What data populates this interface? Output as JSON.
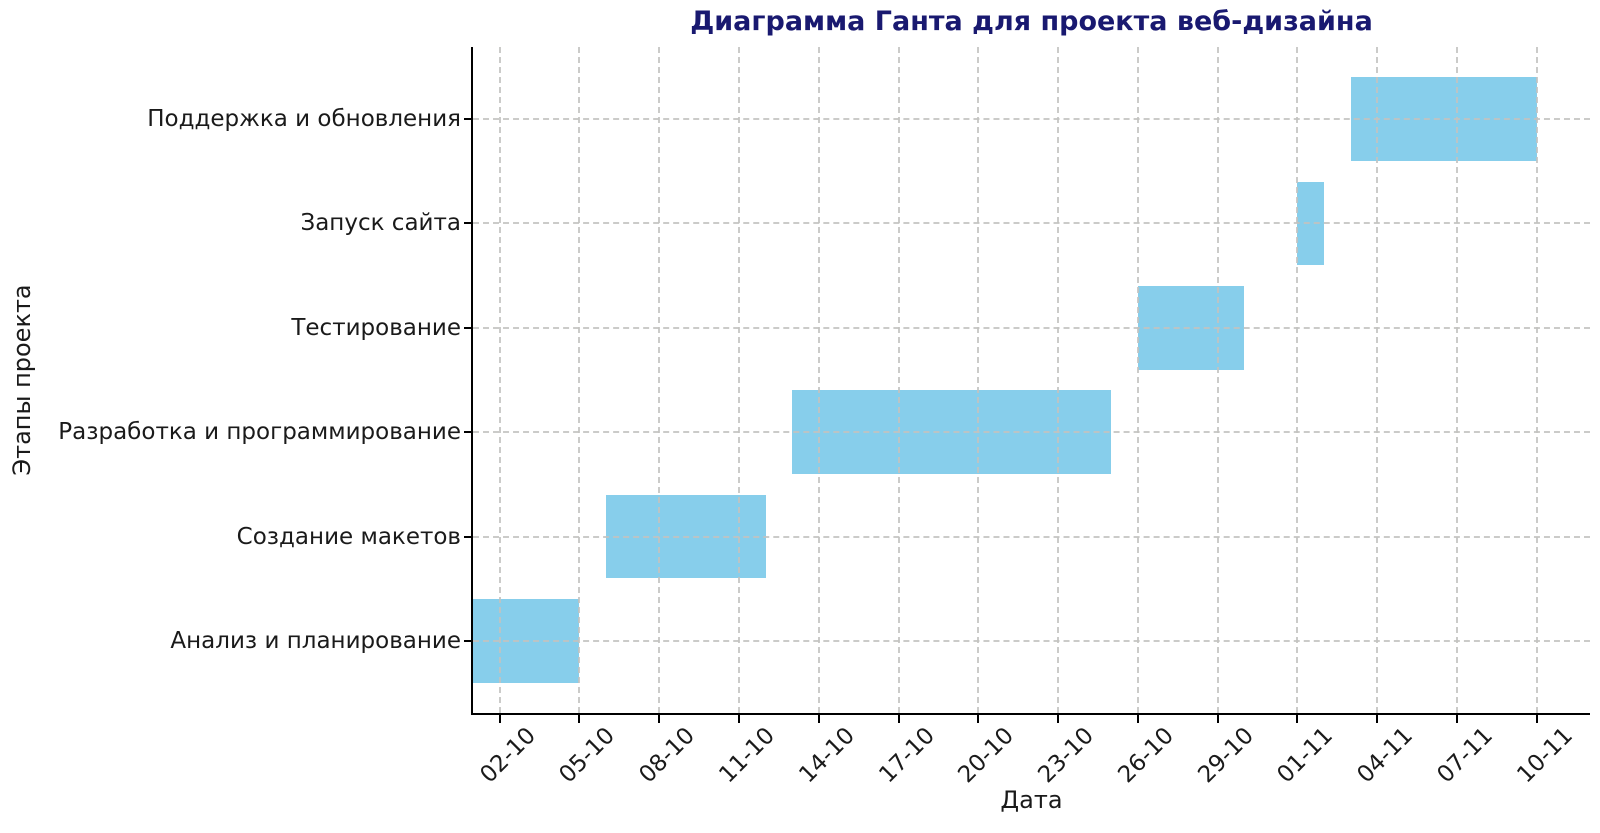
{
  "figure": {
    "kind": "gantt-chart-screenshot",
    "background": "#ffffff"
  },
  "chart_data": {
    "type": "bar",
    "subtype": "horizontal-gantt",
    "title": "Диаграмма Ганта для проекта веб-дизайна",
    "xlabel": "Дата",
    "ylabel": "Этапы проекта",
    "categories_bottom_to_top": [
      "Анализ и планирование",
      "Создание макетов",
      "Разработка и программирование",
      "Тестирование",
      "Запуск сайта",
      "Поддержка и обновления"
    ],
    "tasks": [
      {
        "name": "Анализ и планирование",
        "start_date": "01-10",
        "end_date": "05-10",
        "start_day": 0,
        "duration_days": 4
      },
      {
        "name": "Создание макетов",
        "start_date": "06-10",
        "end_date": "12-10",
        "start_day": 5,
        "duration_days": 6
      },
      {
        "name": "Разработка и программирование",
        "start_date": "13-10",
        "end_date": "25-10",
        "start_day": 12,
        "duration_days": 12
      },
      {
        "name": "Тестирование",
        "start_date": "26-10",
        "end_date": "30-10",
        "start_day": 25,
        "duration_days": 4
      },
      {
        "name": "Запуск сайта",
        "start_date": "01-11",
        "end_date": "02-11",
        "start_day": 31,
        "duration_days": 1
      },
      {
        "name": "Поддержка и обновления",
        "start_date": "03-11",
        "end_date": "10-11",
        "start_day": 33,
        "duration_days": 7
      }
    ],
    "x_ticks": [
      {
        "label": "02-10",
        "day": 1
      },
      {
        "label": "05-10",
        "day": 4
      },
      {
        "label": "08-10",
        "day": 7
      },
      {
        "label": "11-10",
        "day": 10
      },
      {
        "label": "14-10",
        "day": 13
      },
      {
        "label": "17-10",
        "day": 16
      },
      {
        "label": "20-10",
        "day": 19
      },
      {
        "label": "23-10",
        "day": 22
      },
      {
        "label": "26-10",
        "day": 25
      },
      {
        "label": "29-10",
        "day": 28
      },
      {
        "label": "01-11",
        "day": 31
      },
      {
        "label": "04-11",
        "day": 34
      },
      {
        "label": "07-11",
        "day": 37
      },
      {
        "label": "10-11",
        "day": 40
      }
    ],
    "x_range_days": [
      0,
      42
    ],
    "x_axis_start_date": "01-10",
    "grid": true,
    "grid_linestyle": "dashed",
    "legend": "none",
    "colors": {
      "bar": "#87CEEB",
      "title": "#191970",
      "grid": "#c3c3c0",
      "axis": "#000000",
      "tick_text": "#1a1a1a"
    }
  }
}
